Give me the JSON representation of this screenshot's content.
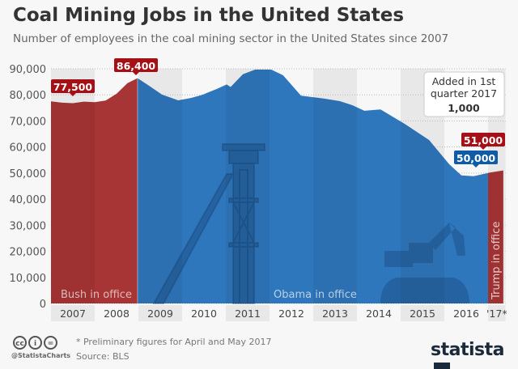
{
  "title": "Coal Mining Jobs in the United States",
  "subtitle": "Number of employees in the coal mining sector in the United States since 2007",
  "chart_data": {
    "type": "area",
    "ylim": [
      0,
      90000
    ],
    "yticks": [
      0,
      10000,
      20000,
      30000,
      40000,
      50000,
      60000,
      70000,
      80000,
      90000
    ],
    "ytick_labels": [
      "0",
      "10,000",
      "20,000",
      "30,000",
      "40,000",
      "50,000",
      "60,000",
      "70,000",
      "80,000",
      "90,000"
    ],
    "xlim": [
      2007,
      2017.4
    ],
    "xtick_labels": [
      "2007",
      "2008",
      "2009",
      "2010",
      "2011",
      "2012",
      "2013",
      "2014",
      "2015",
      "2016",
      "'17*"
    ],
    "grid": true,
    "x": [
      2007.0,
      2007.25,
      2007.5,
      2007.75,
      2008.0,
      2008.25,
      2008.5,
      2008.75,
      2008.98,
      2009.2,
      2009.54,
      2009.91,
      2010.2,
      2010.46,
      2010.8,
      2011.02,
      2011.11,
      2011.39,
      2011.67,
      2012.04,
      2012.31,
      2012.72,
      2013.24,
      2013.61,
      2013.9,
      2014.17,
      2014.54,
      2015.09,
      2015.65,
      2016.11,
      2016.39,
      2016.67,
      2017.04,
      2017.35
    ],
    "values": [
      77500,
      77000,
      76800,
      77400,
      77200,
      77800,
      80400,
      84500,
      86400,
      84000,
      80100,
      77900,
      78800,
      80000,
      82300,
      84000,
      83000,
      87900,
      89700,
      89700,
      87500,
      79700,
      78600,
      77600,
      76000,
      73900,
      74400,
      68900,
      62700,
      53400,
      49100,
      48800,
      50200,
      51000
    ],
    "periods": [
      {
        "label": "Bush in office",
        "from": 2007,
        "to": 2008.98,
        "color": "#a83535"
      },
      {
        "label": "Obama in office",
        "from": 2008.98,
        "to": 2017.0,
        "color": "#2f77bd"
      },
      {
        "label": "Trump in office",
        "from": 2017.0,
        "to": 2017.35,
        "color": "#a83535"
      }
    ],
    "annotations": [
      {
        "text": "77,500",
        "x": 2007.0,
        "y": 77500,
        "color": "#a50f15"
      },
      {
        "text": "86,400",
        "x": 2008.98,
        "y": 86400,
        "color": "#a50f15"
      },
      {
        "text": "50,000",
        "x": 2017.0,
        "y": 50000,
        "color": "#0f5ba8"
      },
      {
        "text": "51,000",
        "x": 2017.35,
        "y": 51000,
        "color": "#a50f15"
      }
    ],
    "callout": {
      "line1": "Added in 1st",
      "line2": "quarter 2017",
      "value": "1,000"
    }
  },
  "footer": {
    "note": "* Preliminary figures for April and May 2017",
    "source": "Source: BLS",
    "handle": "@StatistaCharts",
    "logo": "statista",
    "cc_icons": [
      "cc",
      "by",
      "nd"
    ]
  }
}
